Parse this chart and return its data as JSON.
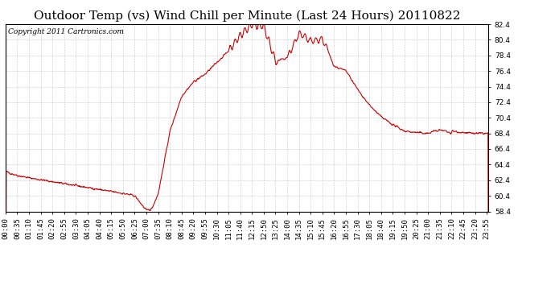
{
  "title": "Outdoor Temp (vs) Wind Chill per Minute (Last 24 Hours) 20110822",
  "copyright_text": "Copyright 2011 Cartronics.com",
  "line_color": "#cc0000",
  "background_color": "#ffffff",
  "plot_bg_color": "#ffffff",
  "grid_color": "#bbbbbb",
  "ylim": [
    58.4,
    82.4
  ],
  "yticks": [
    58.4,
    60.4,
    62.4,
    64.4,
    66.4,
    68.4,
    70.4,
    72.4,
    74.4,
    76.4,
    78.4,
    80.4,
    82.4
  ],
  "xtick_labels": [
    "00:00",
    "00:35",
    "01:10",
    "01:45",
    "02:20",
    "02:55",
    "03:30",
    "04:05",
    "04:40",
    "05:15",
    "05:50",
    "06:25",
    "07:00",
    "07:35",
    "08:10",
    "08:45",
    "09:20",
    "09:55",
    "10:30",
    "11:05",
    "11:40",
    "12:15",
    "12:50",
    "13:25",
    "14:00",
    "14:35",
    "15:10",
    "15:45",
    "16:20",
    "16:55",
    "17:30",
    "18:05",
    "18:40",
    "19:15",
    "19:50",
    "20:25",
    "21:00",
    "21:35",
    "22:10",
    "22:45",
    "23:20",
    "23:55"
  ],
  "num_points": 1440,
  "title_fontsize": 11,
  "tick_fontsize": 6.5,
  "copyright_fontsize": 6.5
}
